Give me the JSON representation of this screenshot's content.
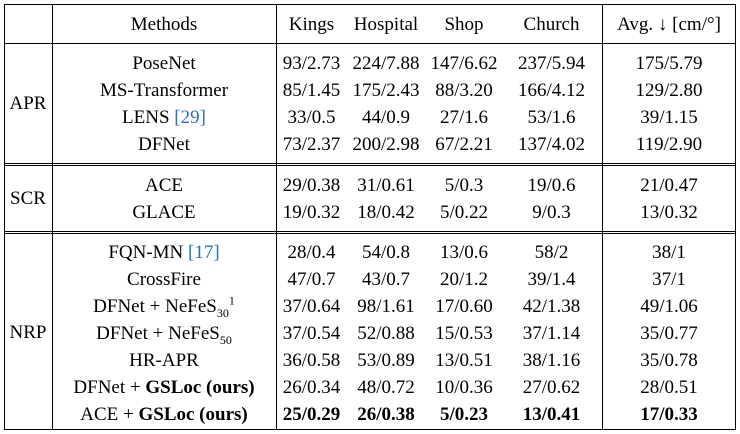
{
  "header": {
    "methods": "Methods",
    "kings": "Kings",
    "hospital": "Hospital",
    "shop": "Shop",
    "church": "Church",
    "avg": "Avg. ↓ [cm/°]"
  },
  "groups": {
    "apr": "APR",
    "scr": "SCR",
    "nrp": "NRP"
  },
  "apr_rows": [
    {
      "method": "PoseNet",
      "kings": "93/2.73",
      "hospital": "224/7.88",
      "shop": "147/6.62",
      "church": "237/5.94",
      "avg": "175/5.79"
    },
    {
      "method": "MS-Transformer",
      "kings": "85/1.45",
      "hospital": "175/2.43",
      "shop": "88/3.20",
      "church": "166/4.12",
      "avg": "129/2.80"
    },
    {
      "method": "LENS",
      "cite": "[29]",
      "kings": "33/0.5",
      "hospital": "44/0.9",
      "shop": "27/1.6",
      "church": "53/1.6",
      "avg": "39/1.15"
    },
    {
      "method": "DFNet",
      "kings": "73/2.37",
      "hospital": "200/2.98",
      "shop": "67/2.21",
      "church": "137/4.02",
      "avg": "119/2.90"
    }
  ],
  "scr_rows": [
    {
      "method": "ACE",
      "kings": "29/0.38",
      "hospital": "31/0.61",
      "shop": "5/0.3",
      "church": "19/0.6",
      "avg": "21/0.47"
    },
    {
      "method": "GLACE",
      "kings": "19/0.32",
      "hospital": "18/0.42",
      "shop": "5/0.22",
      "church": "9/0.3",
      "avg": "13/0.32"
    }
  ],
  "nrp_rows": [
    {
      "method": "FQN-MN",
      "cite": "[17]",
      "kings": "28/0.4",
      "hospital": "54/0.8",
      "shop": "13/0.6",
      "church": "58/2",
      "avg": "38/1"
    },
    {
      "method": "CrossFire",
      "kings": "47/0.7",
      "hospital": "43/0.7",
      "shop": "20/1.2",
      "church": "39/1.4",
      "avg": "37/1"
    },
    {
      "method_pre": "DFNet + NeFeS",
      "sub": "30",
      "sup": "1",
      "kings": "37/0.64",
      "hospital": "98/1.61",
      "shop": "17/0.60",
      "church": "42/1.38",
      "avg": "49/1.06"
    },
    {
      "method_pre": "DFNet + NeFeS",
      "sub": "50",
      "kings": "37/0.54",
      "hospital": "52/0.88",
      "shop": "15/0.53",
      "church": "37/1.14",
      "avg": "35/0.77"
    },
    {
      "method": "HR-APR",
      "kings": "36/0.58",
      "hospital": "53/0.89",
      "shop": "13/0.51",
      "church": "38/1.16",
      "avg": "35/0.78"
    },
    {
      "method_pre": "DFNet + ",
      "method_bold": "GSLoc (ours)",
      "kings": "26/0.34",
      "hospital": "48/0.72",
      "shop": "10/0.36",
      "church": "27/0.62",
      "avg": "28/0.51"
    },
    {
      "method_pre": "ACE + ",
      "method_bold": "GSLoc (ours)",
      "kings": "25/0.29",
      "hospital": "26/0.38",
      "shop": "5/0.23",
      "church": "13/0.41",
      "avg": "17/0.33"
    }
  ]
}
